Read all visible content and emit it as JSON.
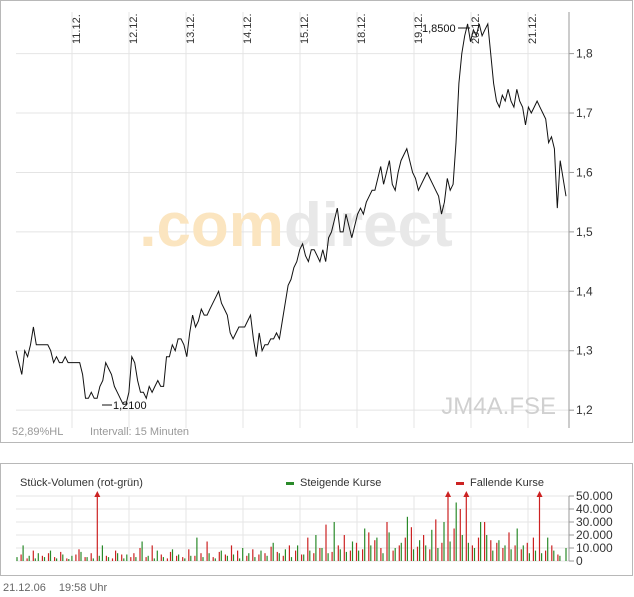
{
  "chart_data": [
    {
      "type": "line",
      "x_tick_labels": [
        "11.12.",
        "12.12.",
        "13.12.",
        "14.12.",
        "15.12.",
        "18.12.",
        "19.12.",
        "20.12.",
        "21.12."
      ],
      "y_ticks": [
        "1,2",
        "1,3",
        "1,4",
        "1,5",
        "1,6",
        "1,7",
        "1,8"
      ],
      "ylim": [
        1.17,
        1.87
      ],
      "grid": true,
      "watermark_brand": ".comdirect",
      "symbol": "JM4A.FSE",
      "range_label": "52,89%HL",
      "interval_label": "Intervall: 15 Minuten",
      "annotation_low": "1,2100",
      "annotation_high": "1,8500",
      "prices": [
        1.3,
        1.28,
        1.26,
        1.3,
        1.29,
        1.31,
        1.34,
        1.31,
        1.31,
        1.31,
        1.31,
        1.31,
        1.3,
        1.28,
        1.29,
        1.28,
        1.28,
        1.29,
        1.28,
        1.28,
        1.28,
        1.28,
        1.28,
        1.26,
        1.22,
        1.22,
        1.23,
        1.22,
        1.22,
        1.24,
        1.25,
        1.28,
        1.27,
        1.26,
        1.24,
        1.23,
        1.22,
        1.21,
        1.21,
        1.23,
        1.29,
        1.28,
        1.25,
        1.23,
        1.23,
        1.22,
        1.24,
        1.23,
        1.24,
        1.25,
        1.24,
        1.24,
        1.29,
        1.29,
        1.31,
        1.3,
        1.32,
        1.32,
        1.31,
        1.29,
        1.33,
        1.36,
        1.34,
        1.35,
        1.37,
        1.36,
        1.36,
        1.37,
        1.38,
        1.39,
        1.4,
        1.38,
        1.37,
        1.36,
        1.33,
        1.32,
        1.33,
        1.34,
        1.34,
        1.34,
        1.35,
        1.36,
        1.32,
        1.29,
        1.33,
        1.3,
        1.31,
        1.31,
        1.32,
        1.32,
        1.33,
        1.32,
        1.35,
        1.38,
        1.41,
        1.42,
        1.44,
        1.45,
        1.47,
        1.48,
        1.46,
        1.45,
        1.47,
        1.47,
        1.46,
        1.45,
        1.47,
        1.45,
        1.49,
        1.5,
        1.52,
        1.54,
        1.5,
        1.5,
        1.53,
        1.51,
        1.49,
        1.51,
        1.53,
        1.54,
        1.53,
        1.55,
        1.56,
        1.57,
        1.57,
        1.59,
        1.61,
        1.58,
        1.6,
        1.62,
        1.58,
        1.57,
        1.6,
        1.62,
        1.63,
        1.64,
        1.62,
        1.6,
        1.59,
        1.57,
        1.58,
        1.59,
        1.6,
        1.59,
        1.58,
        1.57,
        1.56,
        1.53,
        1.55,
        1.59,
        1.57,
        1.58,
        1.65,
        1.75,
        1.8,
        1.83,
        1.85,
        1.82,
        1.84,
        1.83,
        1.85,
        1.83,
        1.84,
        1.85,
        1.8,
        1.75,
        1.72,
        1.71,
        1.73,
        1.72,
        1.74,
        1.72,
        1.71,
        1.74,
        1.72,
        1.71,
        1.68,
        1.71,
        1.7,
        1.71,
        1.72,
        1.71,
        1.7,
        1.69,
        1.65,
        1.66,
        1.64,
        1.54,
        1.62,
        1.59,
        1.56
      ]
    },
    {
      "type": "bar",
      "title": "Stück-Volumen (rot-grün)",
      "legend": [
        {
          "name": "Steigende Kurse",
          "color": "#2a8a2a"
        },
        {
          "name": "Fallende Kurse",
          "color": "#cc2222"
        }
      ],
      "y_ticks": [
        "0",
        "10.000",
        "20.000",
        "30.000",
        "40.000",
        "50.000"
      ],
      "ylim": [
        0,
        50000
      ],
      "volume_up": [
        3000,
        0,
        12000,
        0,
        4000,
        0,
        2000,
        6000,
        0,
        3000,
        0,
        8000,
        0,
        2000,
        0,
        5000,
        0,
        1500,
        4000,
        0,
        0,
        7000,
        0,
        3000,
        0,
        2000,
        0,
        4000,
        12000,
        0,
        3000,
        0,
        0,
        6000,
        0,
        2000,
        5000,
        0,
        0,
        3000,
        0,
        15000,
        0,
        4000,
        0,
        2000,
        8000,
        0,
        3000,
        0,
        0,
        9000,
        0,
        5000,
        0,
        2000,
        0,
        4000,
        0,
        18000,
        0,
        3000,
        0,
        6000,
        0,
        2000,
        0,
        8000,
        0,
        4000,
        0,
        5000,
        0,
        2000,
        10000,
        0,
        6000,
        0,
        3000,
        0,
        8000,
        0,
        4000,
        0,
        14000,
        0,
        6000,
        0,
        9000,
        0,
        3000,
        0,
        12000,
        0,
        5000,
        0,
        8000,
        0,
        20000,
        0,
        10000,
        0,
        6000,
        0,
        30000,
        0,
        9000,
        0,
        7000,
        0,
        15000,
        0,
        8000,
        0,
        25000,
        0,
        12000,
        0,
        18000,
        0,
        6000,
        0,
        22000,
        0,
        10000,
        0,
        14000,
        0,
        34000,
        0,
        9000,
        0,
        16000,
        0,
        12000,
        0,
        24000,
        0,
        10000,
        0,
        30000,
        0,
        15000,
        0,
        45000,
        0,
        20000,
        0,
        14000,
        0,
        10000,
        0,
        30000,
        0,
        20000,
        0,
        8000,
        0,
        16000,
        0,
        12000,
        0,
        9000,
        0,
        25000,
        0,
        12000,
        0,
        6000,
        0,
        8000,
        0,
        6000,
        0,
        18000,
        0,
        8000,
        0,
        4000,
        0,
        10000
      ],
      "volume_down": [
        0,
        5000,
        0,
        2000,
        0,
        8000,
        0,
        0,
        4000,
        0,
        6000,
        0,
        3000,
        0,
        7000,
        0,
        2000,
        0,
        0,
        5000,
        9000,
        0,
        3000,
        0,
        6000,
        0,
        50000,
        0,
        0,
        4000,
        0,
        2000,
        8000,
        0,
        5000,
        0,
        0,
        3000,
        6000,
        0,
        10000,
        0,
        3000,
        0,
        12000,
        0,
        0,
        5000,
        0,
        2000,
        7000,
        0,
        4000,
        0,
        3000,
        0,
        9000,
        0,
        4000,
        0,
        6000,
        0,
        15000,
        0,
        3000,
        0,
        7000,
        0,
        5000,
        0,
        12000,
        0,
        8000,
        0,
        0,
        4000,
        0,
        9000,
        0,
        5000,
        0,
        6000,
        0,
        11000,
        0,
        7000,
        0,
        4000,
        0,
        12000,
        0,
        8000,
        0,
        5000,
        0,
        18000,
        0,
        6000,
        0,
        10000,
        0,
        28000,
        0,
        7000,
        0,
        12000,
        0,
        20000,
        0,
        8000,
        0,
        14000,
        0,
        9000,
        0,
        22000,
        0,
        16000,
        0,
        10000,
        0,
        30000,
        0,
        8000,
        0,
        12000,
        0,
        18000,
        0,
        26000,
        0,
        11000,
        0,
        20000,
        0,
        9000,
        0,
        32000,
        0,
        14000,
        0,
        50000,
        0,
        25000,
        0,
        40000,
        0,
        50000,
        0,
        12000,
        0,
        18000,
        0,
        30000,
        0,
        16000,
        0,
        14000,
        0,
        10000,
        0,
        22000,
        0,
        12000,
        0,
        9000,
        0,
        14000,
        0,
        18000,
        0,
        50000,
        0,
        8000,
        0,
        12000,
        0,
        5000
      ]
    }
  ],
  "footer": {
    "date": "21.12.06",
    "time": "19:58 Uhr"
  }
}
